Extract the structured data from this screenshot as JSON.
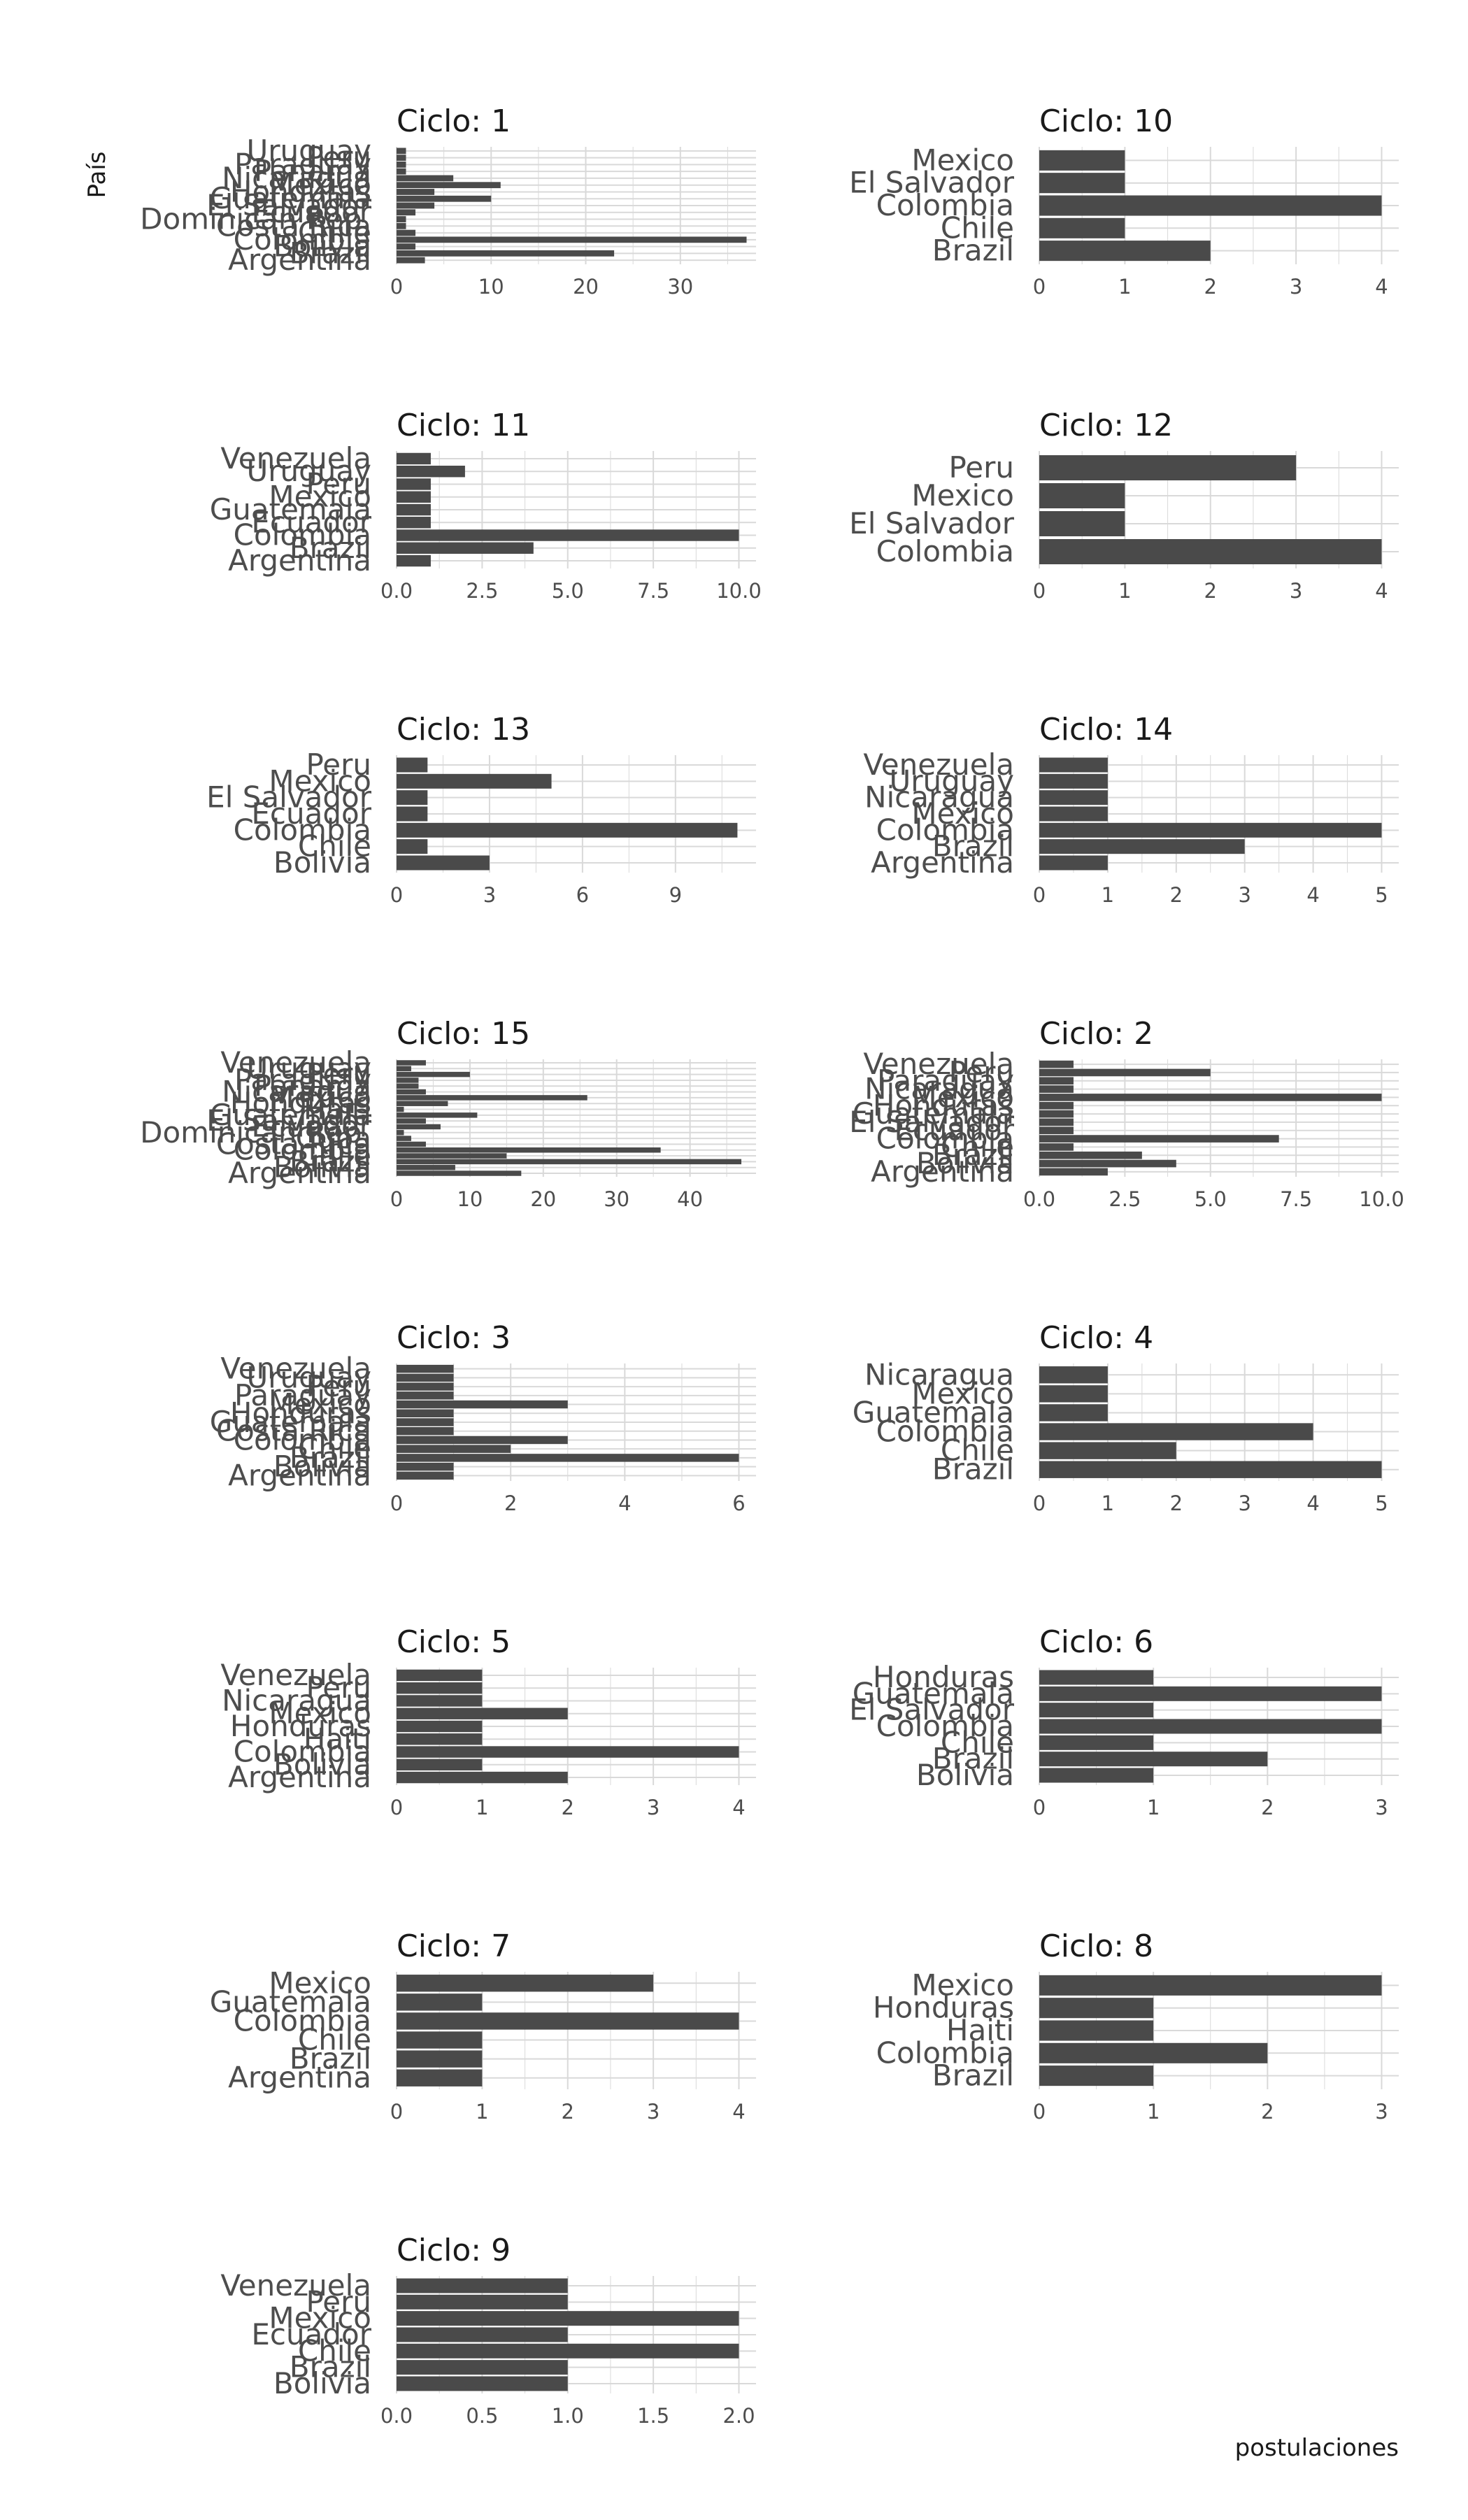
{
  "figure": {
    "ylabel": "País",
    "xlabel": "postulaciones",
    "bar_color": "#4a4a4a",
    "grid_color": "#d9d9d9",
    "title_prefix": "Ciclo: "
  },
  "chart_data": [
    {
      "type": "bar",
      "orientation": "horizontal",
      "title": "Ciclo: 1",
      "xlim": [
        0,
        38
      ],
      "xticks": [
        "0",
        "10",
        "20",
        "30"
      ],
      "xtick_values": [
        0,
        10,
        20,
        30
      ],
      "categories": [
        "Argentina",
        "Brazil",
        "Bolivia",
        "Colombia",
        "Chile",
        "Costa Rica",
        "Dominican Rep.",
        "Ecuador",
        "El Salvador",
        "Guatemala",
        "Honduras",
        "Mexico",
        "Nicaragua",
        "Panama",
        "Paraguay",
        "Peru",
        "Uruguay"
      ],
      "values": [
        3,
        23,
        2,
        37,
        2,
        1,
        1,
        2,
        4,
        10,
        4,
        11,
        6,
        1,
        1,
        1,
        1
      ]
    },
    {
      "type": "bar",
      "orientation": "horizontal",
      "title": "Ciclo: 10",
      "xlim": [
        0,
        4.2
      ],
      "xticks": [
        "0",
        "1",
        "2",
        "3",
        "4"
      ],
      "xtick_values": [
        0,
        1,
        2,
        3,
        4
      ],
      "categories": [
        "Brazil",
        "Chile",
        "Colombia",
        "El Salvador",
        "Mexico"
      ],
      "values": [
        2,
        1,
        4,
        1,
        1
      ]
    },
    {
      "type": "bar",
      "orientation": "horizontal",
      "title": "Ciclo: 11",
      "xlim": [
        0,
        10.5
      ],
      "xticks": [
        "0.0",
        "2.5",
        "5.0",
        "7.5",
        "10.0"
      ],
      "xtick_values": [
        0,
        2.5,
        5,
        7.5,
        10
      ],
      "categories": [
        "Argentina",
        "Brazil",
        "Colombia",
        "Ecuador",
        "Guatemala",
        "Mexico",
        "Peru",
        "Uruguay",
        "Venezuela"
      ],
      "values": [
        1,
        4,
        10,
        1,
        1,
        1,
        1,
        2,
        1
      ]
    },
    {
      "type": "bar",
      "orientation": "horizontal",
      "title": "Ciclo: 12",
      "xlim": [
        0,
        4.2
      ],
      "xticks": [
        "0",
        "1",
        "2",
        "3",
        "4"
      ],
      "xtick_values": [
        0,
        1,
        2,
        3,
        4
      ],
      "categories": [
        "Colombia",
        "El Salvador",
        "Mexico",
        "Peru"
      ],
      "values": [
        4,
        1,
        1,
        3
      ]
    },
    {
      "type": "bar",
      "orientation": "horizontal",
      "title": "Ciclo: 13",
      "xlim": [
        0,
        11.6
      ],
      "xticks": [
        "0",
        "3",
        "6",
        "9"
      ],
      "xtick_values": [
        0,
        3,
        6,
        9
      ],
      "categories": [
        "Bolivia",
        "Chile",
        "Colombia",
        "Ecuador",
        "El Salvador",
        "Mexico",
        "Peru"
      ],
      "values": [
        3,
        1,
        11,
        1,
        1,
        5,
        1
      ]
    },
    {
      "type": "bar",
      "orientation": "horizontal",
      "title": "Ciclo: 14",
      "xlim": [
        0,
        5.25
      ],
      "xticks": [
        "0",
        "1",
        "2",
        "3",
        "4",
        "5"
      ],
      "xtick_values": [
        0,
        1,
        2,
        3,
        4,
        5
      ],
      "categories": [
        "Argentina",
        "Brazil",
        "Colombia",
        "Mexico",
        "Nicaragua",
        "Uruguay",
        "Venezuela"
      ],
      "values": [
        1,
        3,
        5,
        1,
        1,
        1,
        1
      ]
    },
    {
      "type": "bar",
      "orientation": "horizontal",
      "title": "Ciclo: 15",
      "xlim": [
        0,
        49
      ],
      "xticks": [
        "0",
        "10",
        "20",
        "30",
        "40"
      ],
      "xtick_values": [
        0,
        10,
        20,
        30,
        40
      ],
      "categories": [
        "Argentina",
        "Bolivia",
        "Brazil",
        "Chile",
        "Colombia",
        "Costa Rica",
        "Cuba",
        "Dominican Rep.",
        "Ecuador",
        "El Salvador",
        "Guatemala",
        "Haiti",
        "Honduras",
        "Mexico",
        "Nicaragua",
        "Panama",
        "Paraguay",
        "Peru",
        "Uruguay",
        "Venezuela"
      ],
      "values": [
        17,
        8,
        47,
        15,
        36,
        4,
        2,
        1,
        6,
        4,
        11,
        1,
        7,
        26,
        4,
        3,
        3,
        10,
        2,
        4
      ]
    },
    {
      "type": "bar",
      "orientation": "horizontal",
      "title": "Ciclo: 2",
      "xlim": [
        0,
        10.5
      ],
      "xticks": [
        "0.0",
        "2.5",
        "5.0",
        "7.5",
        "10.0"
      ],
      "xtick_values": [
        0,
        2.5,
        5,
        7.5,
        10
      ],
      "categories": [
        "Argentina",
        "Bolivia",
        "Brazil",
        "Chile",
        "Colombia",
        "Ecuador",
        "El Salvador",
        "Guatemala",
        "Honduras",
        "Mexico",
        "Nicaragua",
        "Paraguay",
        "Peru",
        "Venezuela"
      ],
      "values": [
        2,
        4,
        3,
        1,
        7,
        1,
        1,
        1,
        1,
        10,
        1,
        1,
        5,
        1
      ]
    },
    {
      "type": "bar",
      "orientation": "horizontal",
      "title": "Ciclo: 3",
      "xlim": [
        0,
        6.3
      ],
      "xticks": [
        "0",
        "2",
        "4",
        "6"
      ],
      "xtick_values": [
        0,
        2,
        4,
        6
      ],
      "categories": [
        "Argentina",
        "Bolivia",
        "Brazil",
        "Chile",
        "Colombia",
        "Costa Rica",
        "Guatemala",
        "Honduras",
        "Mexico",
        "Paraguay",
        "Peru",
        "Uruguay",
        "Venezuela"
      ],
      "values": [
        1,
        1,
        6,
        2,
        3,
        1,
        1,
        1,
        3,
        1,
        1,
        1,
        1
      ]
    },
    {
      "type": "bar",
      "orientation": "horizontal",
      "title": "Ciclo: 4",
      "xlim": [
        0,
        5.25
      ],
      "xticks": [
        "0",
        "1",
        "2",
        "3",
        "4",
        "5"
      ],
      "xtick_values": [
        0,
        1,
        2,
        3,
        4,
        5
      ],
      "categories": [
        "Brazil",
        "Chile",
        "Colombia",
        "Guatemala",
        "Mexico",
        "Nicaragua"
      ],
      "values": [
        5,
        2,
        4,
        1,
        1,
        1
      ]
    },
    {
      "type": "bar",
      "orientation": "horizontal",
      "title": "Ciclo: 5",
      "xlim": [
        0,
        4.2
      ],
      "xticks": [
        "0",
        "1",
        "2",
        "3",
        "4"
      ],
      "xtick_values": [
        0,
        1,
        2,
        3,
        4
      ],
      "categories": [
        "Argentina",
        "Bolivia",
        "Colombia",
        "Haiti",
        "Honduras",
        "Mexico",
        "Nicaragua",
        "Peru",
        "Venezuela"
      ],
      "values": [
        2,
        1,
        4,
        1,
        1,
        2,
        1,
        1,
        1
      ]
    },
    {
      "type": "bar",
      "orientation": "horizontal",
      "title": "Ciclo: 6",
      "xlim": [
        0,
        3.15
      ],
      "xticks": [
        "0",
        "1",
        "2",
        "3"
      ],
      "xtick_values": [
        0,
        1,
        2,
        3
      ],
      "categories": [
        "Bolivia",
        "Brazil",
        "Chile",
        "Colombia",
        "El Salvador",
        "Guatemala",
        "Honduras"
      ],
      "values": [
        1,
        2,
        1,
        3,
        1,
        3,
        1
      ]
    },
    {
      "type": "bar",
      "orientation": "horizontal",
      "title": "Ciclo: 7",
      "xlim": [
        0,
        4.2
      ],
      "xticks": [
        "0",
        "1",
        "2",
        "3",
        "4"
      ],
      "xtick_values": [
        0,
        1,
        2,
        3,
        4
      ],
      "categories": [
        "Argentina",
        "Brazil",
        "Chile",
        "Colombia",
        "Guatemala",
        "Mexico"
      ],
      "values": [
        1,
        1,
        1,
        4,
        1,
        3
      ]
    },
    {
      "type": "bar",
      "orientation": "horizontal",
      "title": "Ciclo: 8",
      "xlim": [
        0,
        3.15
      ],
      "xticks": [
        "0",
        "1",
        "2",
        "3"
      ],
      "xtick_values": [
        0,
        1,
        2,
        3
      ],
      "categories": [
        "Brazil",
        "Colombia",
        "Haiti",
        "Honduras",
        "Mexico"
      ],
      "values": [
        1,
        2,
        1,
        1,
        3
      ]
    },
    {
      "type": "bar",
      "orientation": "horizontal",
      "title": "Ciclo: 9",
      "xlim": [
        0,
        2.1
      ],
      "xticks": [
        "0.0",
        "0.5",
        "1.0",
        "1.5",
        "2.0"
      ],
      "xtick_values": [
        0,
        0.5,
        1,
        1.5,
        2
      ],
      "categories": [
        "Bolivia",
        "Brazil",
        "Chile",
        "Ecuador",
        "Mexico",
        "Peru",
        "Venezuela"
      ],
      "values": [
        1,
        1,
        2,
        1,
        2,
        1,
        1
      ]
    }
  ]
}
